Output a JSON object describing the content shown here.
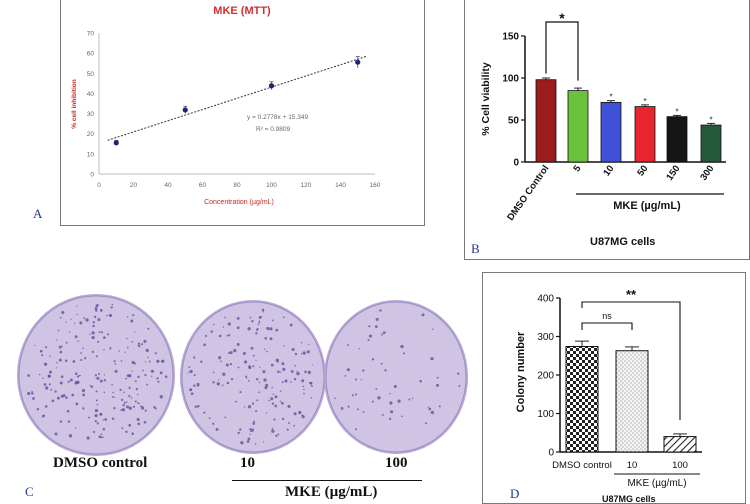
{
  "panels": {
    "a": {
      "label": "A"
    },
    "b": {
      "label": "B",
      "caption": "U87MG cells"
    },
    "c": {
      "label": "C",
      "dish_labels": [
        "DMSO control",
        "10",
        "100"
      ],
      "group_label": "MKE (µg/mL)"
    },
    "d": {
      "label": "D",
      "bottom_caption": "U87MG cells"
    }
  },
  "colors": {
    "panel_a_title": "#d32f2f",
    "panel_a_axis_title": "#c62828",
    "panel_a_points": "#1a237e",
    "dish_fill": "#cfc4e3",
    "colony": "#5a4a9a"
  },
  "chart_data": [
    {
      "id": "A",
      "type": "scatter",
      "title": "MKE (MTT)",
      "xlabel": "Concentration (µg/mL)",
      "ylabel": "% cell inhibition",
      "xlim": [
        0,
        160
      ],
      "ylim": [
        0,
        70
      ],
      "xticks": [
        "0",
        "20",
        "40",
        "60",
        "80",
        "100",
        "120",
        "140",
        "160"
      ],
      "yticks": [
        "0",
        "10",
        "20",
        "30",
        "40",
        "50",
        "60",
        "70"
      ],
      "x": [
        10,
        50,
        100,
        150
      ],
      "y": [
        15.5,
        31.8,
        43.8,
        55.5
      ],
      "err": [
        1.2,
        1.8,
        2.0,
        2.8
      ],
      "trendline": {
        "slope": 0.2778,
        "intercept": 15.349
      },
      "equation": "y = 0.2778x + 15.349",
      "r2": "R² = 0.9809",
      "grid": false
    },
    {
      "id": "B",
      "type": "bar",
      "categories": [
        "DMSO Control",
        "5",
        "10",
        "50",
        "150",
        "300"
      ],
      "values": [
        98,
        85,
        71,
        66,
        54,
        44
      ],
      "err": [
        2,
        3,
        2,
        2,
        1.5,
        2
      ],
      "colors": [
        "#9b1c1c",
        "#69c23a",
        "#3f51d6",
        "#e8242f",
        "#151515",
        "#245a3a"
      ],
      "sig": [
        "",
        "",
        "*",
        "*",
        "*",
        "*"
      ],
      "ylabel": "% Cell viability",
      "yticks": [
        "0",
        "50",
        "100",
        "150"
      ],
      "ylim": [
        0,
        150
      ],
      "group_label": "MKE (µg/mL)",
      "bracket": {
        "from": 0,
        "to": 1,
        "label": "*"
      }
    },
    {
      "id": "D",
      "type": "bar",
      "categories": [
        "DMSO control",
        "10",
        "100"
      ],
      "values": [
        274,
        263,
        40
      ],
      "err": [
        14,
        10,
        7
      ],
      "ylabel": "Colony number",
      "yticks": [
        "0",
        "100",
        "200",
        "300",
        "400"
      ],
      "ylim": [
        0,
        400
      ],
      "group_label": "MKE (µg/mL)",
      "brackets": [
        {
          "from": 0,
          "to": 1,
          "label": "ns"
        },
        {
          "from": 0,
          "to": 2,
          "label": "**"
        }
      ]
    }
  ]
}
